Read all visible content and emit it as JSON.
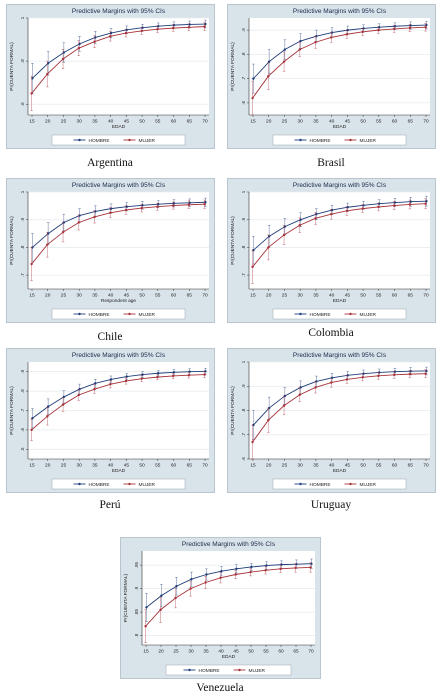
{
  "chart_data": [
    {
      "type": "line",
      "country": "Argentina",
      "title": "Predictive Margins with 95% CIs",
      "xlabel": "EDAD",
      "ylabel": "Pr(CUENTA FORMAL)",
      "x": [
        15,
        20,
        25,
        30,
        35,
        40,
        45,
        50,
        55,
        60,
        65,
        70
      ],
      "ylim": [
        0.55,
        1.0
      ],
      "y_ticks": [
        ".6",
        ".8",
        "1"
      ],
      "y_tick_values": [
        0.6,
        0.8,
        1.0
      ],
      "series": [
        {
          "name": "HOMBRE",
          "color": "#1f3d7a",
          "values": [
            0.72,
            0.79,
            0.84,
            0.88,
            0.91,
            0.93,
            0.945,
            0.955,
            0.962,
            0.967,
            0.97,
            0.972
          ],
          "ci": [
            0.07,
            0.055,
            0.045,
            0.035,
            0.028,
            0.022,
            0.018,
            0.016,
            0.015,
            0.015,
            0.016,
            0.018
          ]
        },
        {
          "name": "MUJER",
          "color": "#a8323a",
          "values": [
            0.65,
            0.74,
            0.81,
            0.86,
            0.89,
            0.915,
            0.93,
            0.94,
            0.948,
            0.953,
            0.957,
            0.96
          ],
          "ci": [
            0.08,
            0.06,
            0.045,
            0.035,
            0.028,
            0.022,
            0.018,
            0.016,
            0.015,
            0.015,
            0.016,
            0.018
          ]
        }
      ]
    },
    {
      "type": "line",
      "country": "Brasil",
      "title": "Predictive Margins with 95% CIs",
      "xlabel": "EDAD",
      "ylabel": "Pr(CUENTA FORMAL)",
      "x": [
        15,
        20,
        25,
        30,
        35,
        40,
        45,
        50,
        55,
        60,
        65,
        70
      ],
      "ylim": [
        0.55,
        0.95
      ],
      "y_ticks": [
        ".6",
        ".7",
        ".8",
        ".9"
      ],
      "y_tick_values": [
        0.6,
        0.7,
        0.8,
        0.9
      ],
      "series": [
        {
          "name": "HOMBRE",
          "color": "#1f3d7a",
          "values": [
            0.7,
            0.77,
            0.82,
            0.855,
            0.875,
            0.89,
            0.9,
            0.907,
            0.912,
            0.916,
            0.919,
            0.921
          ],
          "ci": [
            0.06,
            0.05,
            0.04,
            0.03,
            0.025,
            0.02,
            0.017,
            0.015,
            0.014,
            0.014,
            0.015,
            0.016
          ]
        },
        {
          "name": "MUJER",
          "color": "#a8323a",
          "values": [
            0.62,
            0.71,
            0.77,
            0.82,
            0.85,
            0.87,
            0.883,
            0.893,
            0.9,
            0.905,
            0.909,
            0.912
          ],
          "ci": [
            0.07,
            0.055,
            0.04,
            0.03,
            0.025,
            0.02,
            0.017,
            0.015,
            0.014,
            0.014,
            0.015,
            0.016
          ]
        }
      ]
    },
    {
      "type": "line",
      "country": "Chile",
      "title": "Predictive Margins with 95% CIs",
      "xlabel": "Respondent age",
      "ylabel": "Pr(CUENTA FORMAL)",
      "x": [
        15,
        20,
        25,
        30,
        35,
        40,
        45,
        50,
        55,
        60,
        65,
        70
      ],
      "ylim": [
        0.65,
        1.0
      ],
      "y_ticks": [
        ".7",
        ".8",
        ".9",
        "1"
      ],
      "y_tick_values": [
        0.7,
        0.8,
        0.9,
        1.0
      ],
      "series": [
        {
          "name": "HOMBRE",
          "color": "#1f3d7a",
          "values": [
            0.8,
            0.85,
            0.89,
            0.915,
            0.93,
            0.94,
            0.947,
            0.952,
            0.956,
            0.959,
            0.961,
            0.963
          ],
          "ci": [
            0.05,
            0.04,
            0.03,
            0.025,
            0.02,
            0.017,
            0.015,
            0.014,
            0.013,
            0.013,
            0.014,
            0.015
          ]
        },
        {
          "name": "MUJER",
          "color": "#a8323a",
          "values": [
            0.74,
            0.81,
            0.855,
            0.89,
            0.91,
            0.925,
            0.935,
            0.942,
            0.947,
            0.951,
            0.954,
            0.956
          ],
          "ci": [
            0.06,
            0.045,
            0.035,
            0.027,
            0.022,
            0.018,
            0.016,
            0.014,
            0.013,
            0.013,
            0.014,
            0.015
          ]
        }
      ]
    },
    {
      "type": "line",
      "country": "Colombia",
      "title": "Predictive Margins with 95% CIs",
      "xlabel": "EDAD",
      "ylabel": "Pr(CUENTA FORMAL)",
      "x": [
        15,
        20,
        25,
        30,
        35,
        40,
        45,
        50,
        55,
        60,
        65,
        70
      ],
      "ylim": [
        0.65,
        1.0
      ],
      "y_ticks": [
        ".7",
        ".8",
        ".9",
        "1"
      ],
      "y_tick_values": [
        0.7,
        0.8,
        0.9,
        1.0
      ],
      "series": [
        {
          "name": "HOMBRE",
          "color": "#1f3d7a",
          "values": [
            0.79,
            0.84,
            0.875,
            0.9,
            0.92,
            0.935,
            0.945,
            0.952,
            0.958,
            0.962,
            0.965,
            0.967
          ],
          "ci": [
            0.05,
            0.04,
            0.03,
            0.025,
            0.02,
            0.017,
            0.015,
            0.014,
            0.014,
            0.015,
            0.016,
            0.018
          ]
        },
        {
          "name": "MUJER",
          "color": "#a8323a",
          "values": [
            0.73,
            0.8,
            0.845,
            0.88,
            0.905,
            0.92,
            0.932,
            0.94,
            0.946,
            0.951,
            0.955,
            0.958
          ],
          "ci": [
            0.06,
            0.045,
            0.035,
            0.027,
            0.022,
            0.018,
            0.016,
            0.014,
            0.014,
            0.015,
            0.016,
            0.018
          ]
        }
      ]
    },
    {
      "type": "line",
      "country": "Perú",
      "title": "Predictive Margins with 95% CIs",
      "xlabel": "EDAD",
      "ylabel": "Pr(CUENTA FORMAL)",
      "x": [
        15,
        20,
        25,
        30,
        35,
        40,
        45,
        50,
        55,
        60,
        65,
        70
      ],
      "ylim": [
        0.45,
        0.95
      ],
      "y_ticks": [
        ".5",
        ".6",
        ".7",
        ".8",
        ".9"
      ],
      "y_tick_values": [
        0.5,
        0.6,
        0.7,
        0.8,
        0.9
      ],
      "series": [
        {
          "name": "HOMBRE",
          "color": "#1f3d7a",
          "values": [
            0.66,
            0.72,
            0.77,
            0.81,
            0.84,
            0.86,
            0.875,
            0.885,
            0.892,
            0.897,
            0.9,
            0.902
          ],
          "ci": [
            0.05,
            0.04,
            0.032,
            0.026,
            0.021,
            0.018,
            0.016,
            0.015,
            0.014,
            0.014,
            0.015,
            0.016
          ]
        },
        {
          "name": "MUJER",
          "color": "#a8323a",
          "values": [
            0.6,
            0.67,
            0.73,
            0.78,
            0.81,
            0.835,
            0.852,
            0.864,
            0.872,
            0.878,
            0.882,
            0.885
          ],
          "ci": [
            0.055,
            0.045,
            0.035,
            0.028,
            0.022,
            0.019,
            0.016,
            0.015,
            0.014,
            0.014,
            0.015,
            0.016
          ]
        }
      ]
    },
    {
      "type": "line",
      "country": "Uruguay",
      "title": "Predictive Margins with 95% CIs",
      "xlabel": "EDAD",
      "ylabel": "Pr(CUENTA FORMAL)",
      "x": [
        15,
        20,
        25,
        30,
        35,
        40,
        45,
        50,
        55,
        60,
        65,
        70
      ],
      "ylim": [
        0.6,
        1.0
      ],
      "y_ticks": [
        ".6",
        ".7",
        ".8",
        ".9",
        "1"
      ],
      "y_tick_values": [
        0.6,
        0.7,
        0.8,
        0.9,
        1.0
      ],
      "series": [
        {
          "name": "HOMBRE",
          "color": "#1f3d7a",
          "values": [
            0.74,
            0.81,
            0.86,
            0.895,
            0.92,
            0.935,
            0.945,
            0.952,
            0.957,
            0.96,
            0.962,
            0.963
          ],
          "ci": [
            0.06,
            0.045,
            0.035,
            0.027,
            0.022,
            0.018,
            0.016,
            0.015,
            0.014,
            0.014,
            0.015,
            0.016
          ]
        },
        {
          "name": "MUJER",
          "color": "#a8323a",
          "values": [
            0.67,
            0.76,
            0.82,
            0.865,
            0.895,
            0.915,
            0.928,
            0.937,
            0.943,
            0.947,
            0.95,
            0.952
          ],
          "ci": [
            0.07,
            0.05,
            0.038,
            0.029,
            0.023,
            0.019,
            0.016,
            0.015,
            0.014,
            0.014,
            0.015,
            0.016
          ]
        }
      ]
    },
    {
      "type": "line",
      "country": "Venezuela",
      "title": "Predictive Margins with 95% CIs",
      "xlabel": "EDAD",
      "ylabel": "Pr(CUENTA FORMAL)",
      "x": [
        15,
        20,
        25,
        30,
        35,
        40,
        45,
        50,
        55,
        60,
        65,
        70
      ],
      "ylim": [
        0.78,
        0.98
      ],
      "y_ticks": [
        ".8",
        ".85",
        ".9",
        ".95"
      ],
      "y_tick_values": [
        0.8,
        0.85,
        0.9,
        0.95
      ],
      "series": [
        {
          "name": "HOMBRE",
          "color": "#1f3d7a",
          "values": [
            0.86,
            0.885,
            0.905,
            0.92,
            0.93,
            0.937,
            0.942,
            0.946,
            0.949,
            0.951,
            0.952,
            0.953
          ],
          "ci": [
            0.03,
            0.024,
            0.019,
            0.015,
            0.012,
            0.01,
            0.009,
            0.008,
            0.008,
            0.008,
            0.009,
            0.01
          ]
        },
        {
          "name": "MUJER",
          "color": "#a8323a",
          "values": [
            0.82,
            0.855,
            0.88,
            0.9,
            0.913,
            0.923,
            0.93,
            0.935,
            0.939,
            0.942,
            0.944,
            0.945
          ],
          "ci": [
            0.035,
            0.027,
            0.021,
            0.016,
            0.013,
            0.011,
            0.009,
            0.008,
            0.008,
            0.008,
            0.009,
            0.01
          ]
        }
      ]
    }
  ]
}
